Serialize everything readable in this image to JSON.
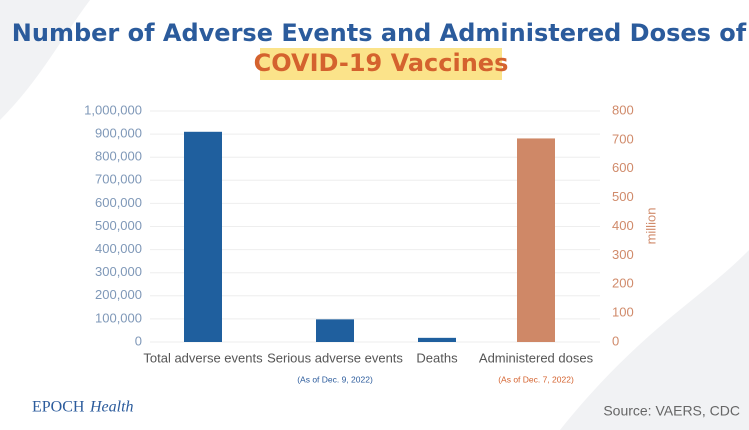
{
  "chart_data": {
    "type": "bar",
    "title": [
      "Number of Adverse Events and Administered Doses of",
      "COVID-19 Vaccines"
    ],
    "categories": [
      "Total adverse events",
      "Serious adverse events",
      "Deaths",
      "Administered doses"
    ],
    "category_notes": [
      null,
      "(As of Dec. 9, 2022)",
      null,
      "(As of Dec. 7, 2022)"
    ],
    "series": [
      {
        "color": "#1f5f9e",
        "values": [
          910000,
          98000,
          18000,
          null
        ]
      },
      {
        "color": "#cf8867",
        "axis": "y2",
        "values": [
          null,
          null,
          null,
          705
        ]
      }
    ],
    "ylim": [
      0,
      1000000
    ],
    "yticks": [
      0,
      {
        "value": 100000,
        "label": "100,000"
      },
      {
        "value": 200000,
        "label": "200,000"
      },
      {
        "value": 300000,
        "label": "300,000"
      },
      {
        "value": 400000,
        "label": "400,000"
      },
      {
        "value": 500000,
        "label": "500,000"
      },
      {
        "value": 600000,
        "label": "600,000"
      },
      {
        "value": 700000,
        "label": "700,000"
      },
      {
        "value": 800000,
        "label": "800,000"
      },
      {
        "value": 900000,
        "label": "900,000"
      },
      {
        "value": 1000000,
        "label": "1,000,000"
      }
    ],
    "y2lim": [
      0,
      800
    ],
    "y2ticks": [
      0,
      100,
      200,
      300,
      400,
      500,
      600,
      700,
      800
    ],
    "y2label": "million",
    "grid": true,
    "brand": [
      "EPOCH",
      "Health"
    ],
    "source": "Source: VAERS, CDC"
  }
}
